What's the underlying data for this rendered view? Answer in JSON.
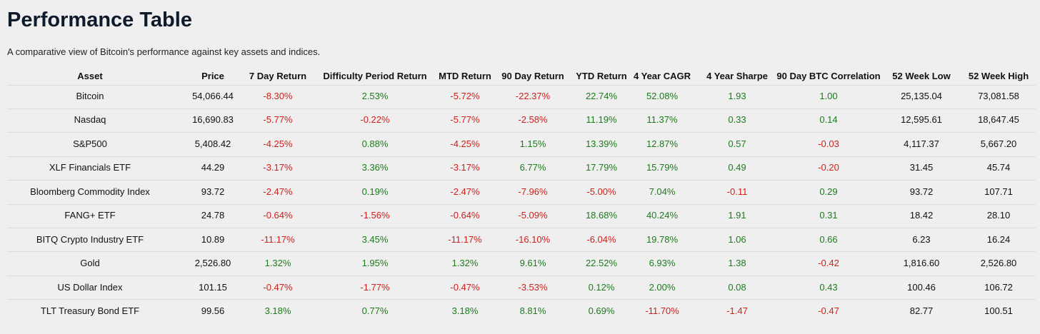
{
  "header": {
    "title": "Performance Table",
    "subtitle": "A comparative view of Bitcoin's performance against key assets and indices."
  },
  "table": {
    "columns": [
      "Asset",
      "Price",
      "7 Day Return",
      "Difficulty Period Return",
      "MTD Return",
      "90 Day Return",
      "YTD Return",
      "4 Year CAGR",
      "4 Year Sharpe",
      "90 Day BTC Correlation",
      "52 Week Low",
      "52 Week High"
    ],
    "rows": [
      [
        "Bitcoin",
        "54,066.44",
        "-8.30%",
        "2.53%",
        "-5.72%",
        "-22.37%",
        "22.74%",
        "52.08%",
        "1.93",
        "1.00",
        "25,135.04",
        "73,081.58"
      ],
      [
        "Nasdaq",
        "16,690.83",
        "-5.77%",
        "-0.22%",
        "-5.77%",
        "-2.58%",
        "11.19%",
        "11.37%",
        "0.33",
        "0.14",
        "12,595.61",
        "18,647.45"
      ],
      [
        "S&P500",
        "5,408.42",
        "-4.25%",
        "0.88%",
        "-4.25%",
        "1.15%",
        "13.39%",
        "12.87%",
        "0.57",
        "-0.03",
        "4,117.37",
        "5,667.20"
      ],
      [
        "XLF Financials ETF",
        "44.29",
        "-3.17%",
        "3.36%",
        "-3.17%",
        "6.77%",
        "17.79%",
        "15.79%",
        "0.49",
        "-0.20",
        "31.45",
        "45.74"
      ],
      [
        "Bloomberg Commodity Index",
        "93.72",
        "-2.47%",
        "0.19%",
        "-2.47%",
        "-7.96%",
        "-5.00%",
        "7.04%",
        "-0.11",
        "0.29",
        "93.72",
        "107.71"
      ],
      [
        "FANG+ ETF",
        "24.78",
        "-0.64%",
        "-1.56%",
        "-0.64%",
        "-5.09%",
        "18.68%",
        "40.24%",
        "1.91",
        "0.31",
        "18.42",
        "28.10"
      ],
      [
        "BITQ Crypto Industry ETF",
        "10.89",
        "-11.17%",
        "3.45%",
        "-11.17%",
        "-16.10%",
        "-6.04%",
        "19.78%",
        "1.06",
        "0.66",
        "6.23",
        "16.24"
      ],
      [
        "Gold",
        "2,526.80",
        "1.32%",
        "1.95%",
        "1.32%",
        "9.61%",
        "22.52%",
        "6.93%",
        "1.38",
        "-0.42",
        "1,816.60",
        "2,526.80"
      ],
      [
        "US Dollar Index",
        "101.15",
        "-0.47%",
        "-1.77%",
        "-0.47%",
        "-3.53%",
        "0.12%",
        "2.00%",
        "0.08",
        "0.43",
        "100.46",
        "106.72"
      ],
      [
        "TLT Treasury Bond ETF",
        "99.56",
        "3.18%",
        "0.77%",
        "3.18%",
        "8.81%",
        "0.69%",
        "-11.70%",
        "-1.47",
        "-0.47",
        "82.77",
        "100.51"
      ]
    ]
  }
}
